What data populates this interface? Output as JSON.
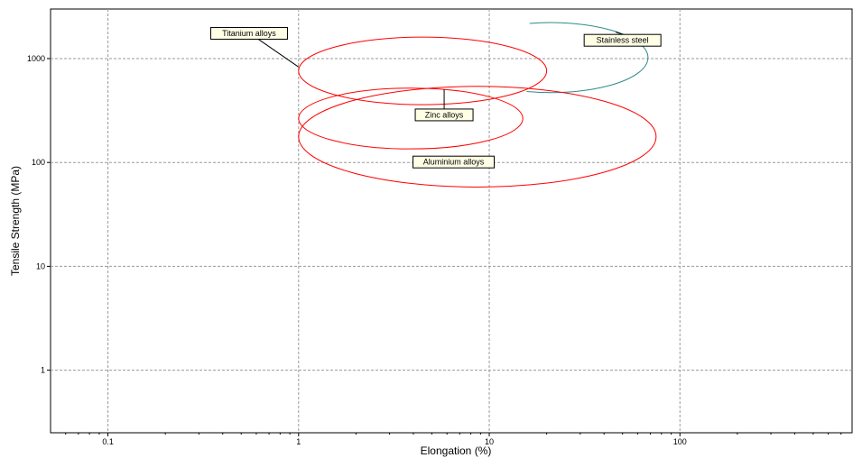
{
  "chart_data": {
    "type": "scatter",
    "xlabel": "Elongation (%)",
    "ylabel": "Tensile Strength (MPa)",
    "x_scale": "log",
    "y_scale": "log",
    "xlim": [
      0.05,
      800
    ],
    "ylim": [
      0.25,
      3000
    ],
    "x_ticks": [
      0.1,
      1,
      10,
      100
    ],
    "x_tick_labels": [
      "0.1",
      "1",
      "10",
      "100"
    ],
    "y_ticks": [
      1,
      10,
      100,
      1000
    ],
    "y_tick_labels": [
      "1",
      "10",
      "100",
      "1000"
    ],
    "grid": true,
    "series": [
      {
        "name": "Stainless steel",
        "color": "#2e8b8b",
        "x_range": [
          6.5,
          68
        ],
        "y_range": [
          470,
          2220
        ],
        "open_arc": true,
        "label_at": [
          50,
          1500
        ]
      },
      {
        "name": "Titanium alloys",
        "color": "#ff0000",
        "x_range": [
          1,
          20
        ],
        "y_range": [
          360,
          1610
        ],
        "label_at": [
          0.55,
          1750
        ]
      },
      {
        "name": "Zinc alloys",
        "color": "#ff0000",
        "x_range": [
          1,
          15
        ],
        "y_range": [
          135,
          520
        ],
        "label_at": [
          5.8,
          287
        ]
      },
      {
        "name": "Aluminium alloys",
        "color": "#ff0000",
        "x_range": [
          1,
          75
        ],
        "y_range": [
          58,
          540
        ],
        "label_at": [
          6.5,
          101
        ]
      }
    ]
  }
}
